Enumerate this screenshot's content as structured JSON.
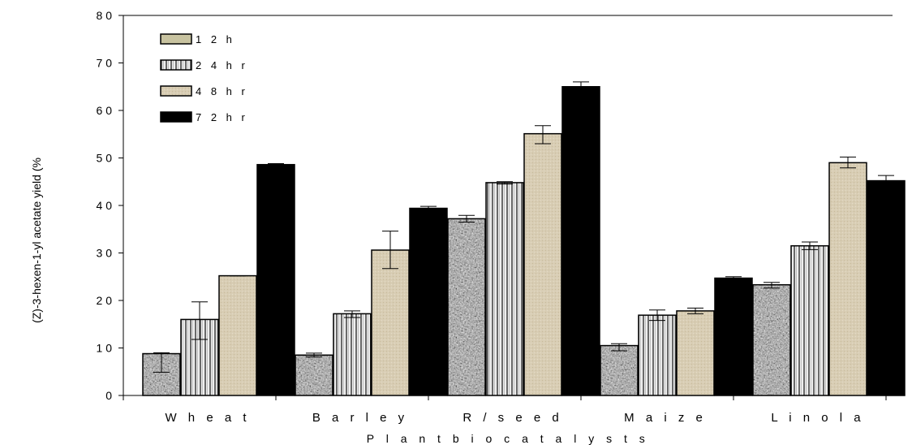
{
  "chart_data": {
    "type": "bar",
    "title": "",
    "xlabel": "P l a n t  b i o c a t a l y s t s",
    "ylabel": "(Z)-3-hexen-1-yl acetate yield (%",
    "ylim": [
      0,
      80
    ],
    "yticks": [
      0,
      10,
      20,
      30,
      40,
      50,
      60,
      70,
      80
    ],
    "ytick_labels": [
      "0",
      "1 0",
      "2 0",
      "3 0",
      "4 0",
      "5 0",
      "6 0",
      "7 0",
      "8 0"
    ],
    "categories": [
      "W  h e a t",
      "B a r l e y",
      "R / s e e d",
      "M  a i z e",
      "L i n o l a"
    ],
    "legend_position": "top-left",
    "grid": false,
    "series": [
      {
        "name": "1 2   h",
        "pattern": "granite",
        "values": [
          8.8,
          8.5,
          37.2,
          10.5,
          23.3
        ],
        "errors": [
          [
            4.9,
            9.0
          ],
          [
            8.1,
            8.9
          ],
          [
            36.5,
            37.9
          ],
          [
            9.4,
            10.9
          ],
          [
            22.6,
            23.8
          ]
        ]
      },
      {
        "name": "2 4  h r",
        "pattern": "vertical-stripes",
        "values": [
          16.0,
          17.2,
          44.8,
          16.9,
          31.5
        ],
        "errors": [
          [
            11.8,
            19.7
          ],
          [
            16.4,
            17.8
          ],
          [
            44.5,
            45.0
          ],
          [
            15.8,
            18.0
          ],
          [
            30.7,
            32.3
          ]
        ]
      },
      {
        "name": "4 8  h r",
        "pattern": "stipple-beige",
        "values": [
          25.2,
          30.6,
          55.1,
          17.8,
          49.0
        ],
        "errors": [
          [
            25.2,
            25.2
          ],
          [
            26.7,
            34.6
          ],
          [
            53.0,
            56.8
          ],
          [
            17.2,
            18.4
          ],
          [
            47.9,
            50.2
          ]
        ]
      },
      {
        "name": "7 2   h r",
        "pattern": "solid-black",
        "values": [
          48.6,
          39.4,
          65.0,
          24.7,
          45.2
        ],
        "errors": [
          [
            48.4,
            48.8
          ],
          [
            38.9,
            39.8
          ],
          [
            64.0,
            66.0
          ],
          [
            24.4,
            25.0
          ],
          [
            44.1,
            46.3
          ]
        ]
      }
    ]
  },
  "colors": {
    "granite_base": "#9a9a9a",
    "stripe_dark": "#666666",
    "stripe_light": "#eeeeee",
    "beige": "#d8cdb4",
    "black": "#000000"
  }
}
